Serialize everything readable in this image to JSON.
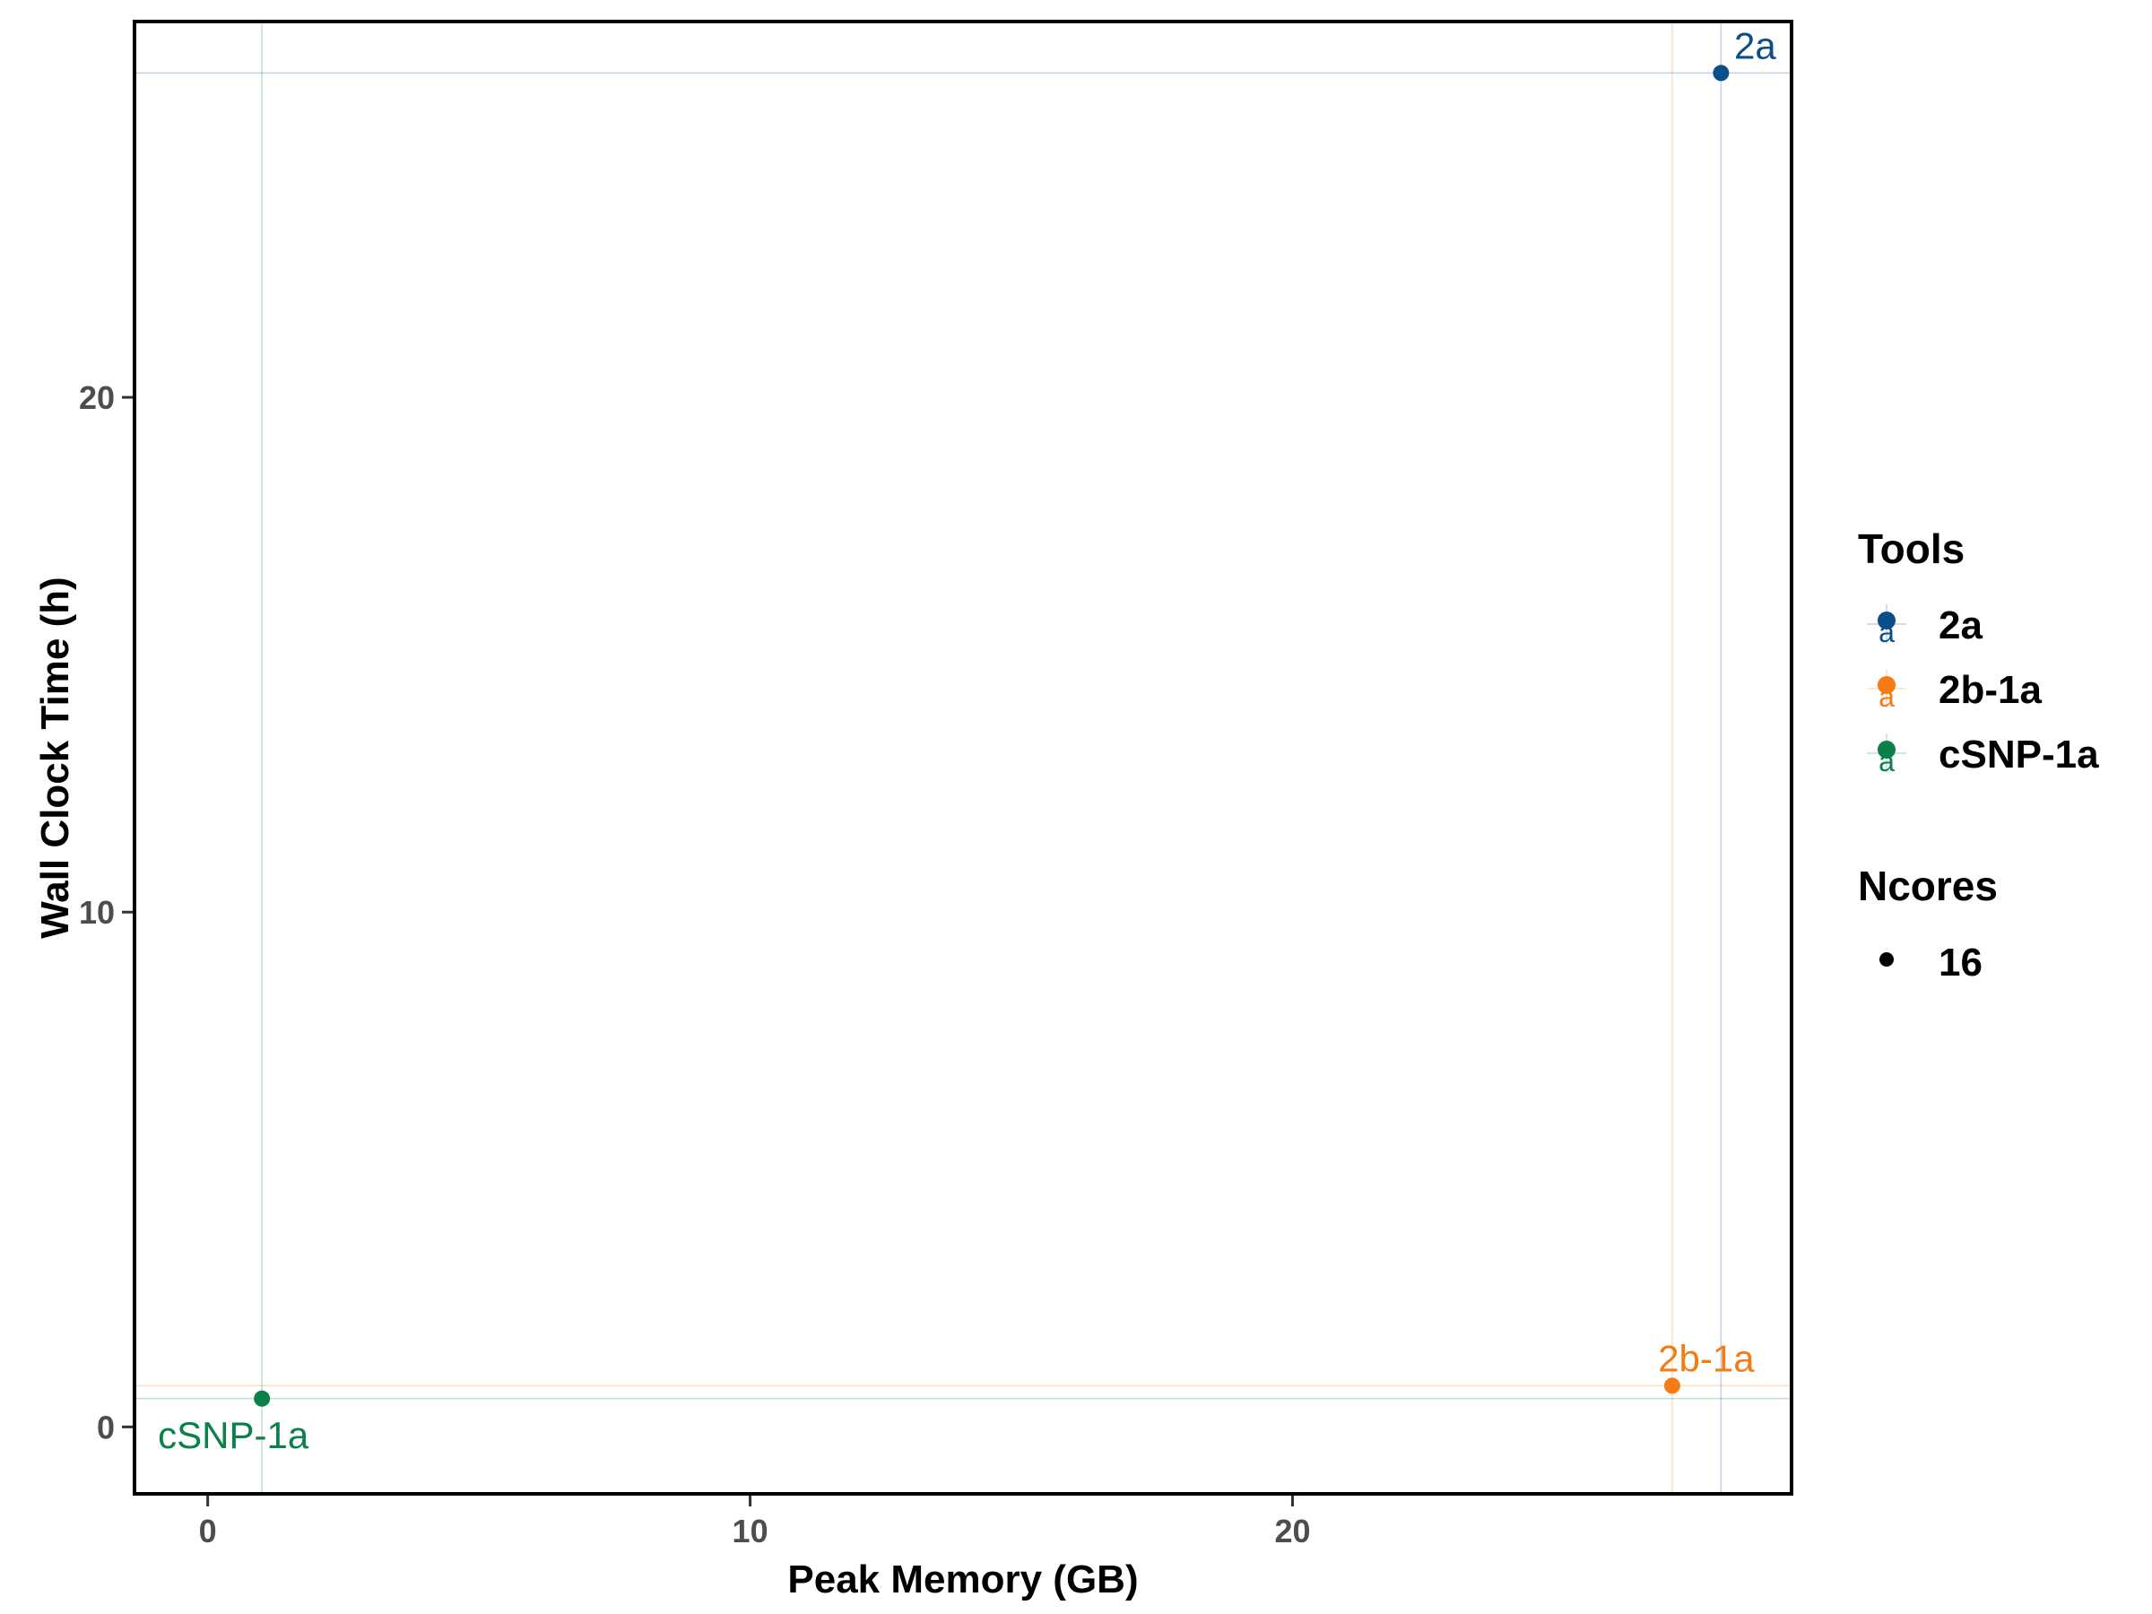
{
  "chart_data": {
    "type": "scatter",
    "title": "",
    "xlabel": "Peak Memory (GB)",
    "ylabel": "Wall Clock Time (h)",
    "xlim": [
      -1.35,
      29.2
    ],
    "ylim": [
      -1.3,
      27.3
    ],
    "xticks": [
      0,
      10,
      20
    ],
    "yticks": [
      0,
      10,
      20
    ],
    "grid": false,
    "reference_lines": "each point has a faint vertical and horizontal line in its series colour",
    "series": [
      {
        "name": "2a",
        "color": "#0b4f8a",
        "points": [
          {
            "x": 27.9,
            "y": 26.3,
            "label": "2a"
          }
        ]
      },
      {
        "name": "2b-1a",
        "color": "#f57c14",
        "points": [
          {
            "x": 27.0,
            "y": 0.8,
            "label": "2b-1a"
          }
        ]
      },
      {
        "name": "cSNP-1a",
        "color": "#0b8049",
        "points": [
          {
            "x": 1.0,
            "y": 0.55,
            "label": "cSNP-1a"
          }
        ]
      }
    ],
    "legend": {
      "placement": "right",
      "color_title": "Tools",
      "color_entries": [
        "2a",
        "2b-1a",
        "cSNP-1a"
      ],
      "size_title": "Ncores",
      "size_entries": [
        "16"
      ]
    }
  }
}
